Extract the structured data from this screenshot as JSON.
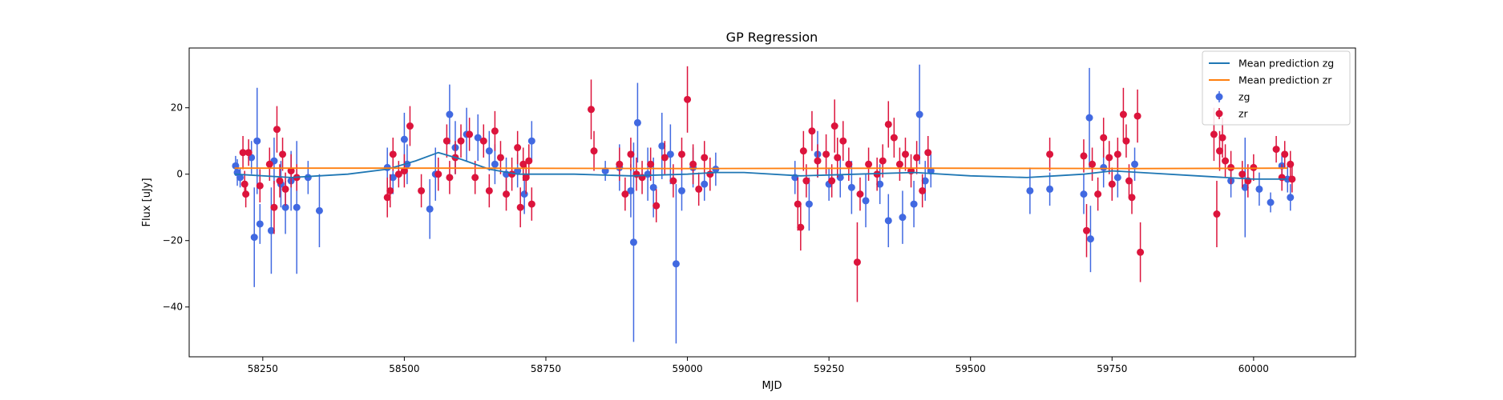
{
  "chart_data": {
    "type": "scatter",
    "title": "GP Regression",
    "xlabel": "MJD",
    "ylabel": "Flux [uJy]",
    "xlim": [
      58120,
      60180
    ],
    "ylim": [
      -55,
      38
    ],
    "xticks": [
      58250,
      58500,
      58750,
      59000,
      59250,
      59500,
      59750,
      60000
    ],
    "yticks": [
      -40,
      -20,
      0,
      20
    ],
    "grid": false,
    "legend_position": "top-right",
    "colors": {
      "zg_line": "#1f77b4",
      "zr_line": "#ff7f0e",
      "zg_points": "#4169e1",
      "zr_points": "#dc143c"
    },
    "series": [
      {
        "name": "Mean prediction zg",
        "kind": "line",
        "x": [
          58200,
          58300,
          58400,
          58470,
          58520,
          58560,
          58600,
          58650,
          58700,
          58800,
          58900,
          59000,
          59050,
          59100,
          59200,
          59300,
          59400,
          59500,
          59600,
          59650,
          59700,
          59750,
          59800,
          59900,
          59950,
          60000,
          60060
        ],
        "y": [
          0.0,
          -1.0,
          0.0,
          1.5,
          4.0,
          6.5,
          4.5,
          1.5,
          0.0,
          0.0,
          -0.5,
          0.0,
          0.5,
          0.5,
          -0.5,
          0.0,
          0.5,
          -0.5,
          -1.0,
          -0.5,
          0.0,
          1.0,
          0.5,
          -0.5,
          -1.0,
          -1.5,
          -1.5
        ]
      },
      {
        "name": "Mean prediction zr",
        "kind": "line",
        "x": [
          58200,
          58600,
          59000,
          59400,
          59800,
          60060
        ],
        "y": [
          1.8,
          1.8,
          1.7,
          1.8,
          1.7,
          1.8
        ]
      },
      {
        "name": "zg",
        "kind": "errorbar",
        "points": [
          [
            58202,
            2.5,
            3
          ],
          [
            58205,
            0.5,
            4
          ],
          [
            58210,
            -1,
            3
          ],
          [
            58230,
            5,
            5
          ],
          [
            58235,
            -19,
            15
          ],
          [
            58240,
            10,
            16
          ],
          [
            58245,
            -15,
            6
          ],
          [
            58265,
            -17,
            13
          ],
          [
            58270,
            4,
            7
          ],
          [
            58282,
            -3,
            7
          ],
          [
            58290,
            -10,
            8
          ],
          [
            58300,
            -2,
            9
          ],
          [
            58310,
            -10,
            20
          ],
          [
            58330,
            -1,
            5
          ],
          [
            58350,
            -11,
            11
          ],
          [
            58470,
            2,
            6
          ],
          [
            58480,
            -1,
            5
          ],
          [
            58500,
            10.5,
            8
          ],
          [
            58505,
            3,
            6
          ],
          [
            58545,
            -10.5,
            9
          ],
          [
            58555,
            0,
            8
          ],
          [
            58580,
            18,
            9
          ],
          [
            58590,
            8,
            8
          ],
          [
            58610,
            12,
            8
          ],
          [
            58630,
            11,
            7
          ],
          [
            58650,
            7,
            6
          ],
          [
            58660,
            3,
            6
          ],
          [
            58680,
            0,
            5
          ],
          [
            58700,
            1,
            5
          ],
          [
            58712,
            -6,
            6
          ],
          [
            58725,
            10,
            6
          ],
          [
            58855,
            1,
            3
          ],
          [
            58880,
            2,
            7
          ],
          [
            58900,
            -5,
            8
          ],
          [
            58905,
            -20.5,
            30
          ],
          [
            58912,
            15.5,
            12
          ],
          [
            58930,
            0,
            8
          ],
          [
            58940,
            -4,
            9
          ],
          [
            58955,
            8.5,
            10
          ],
          [
            58970,
            6,
            9
          ],
          [
            58980,
            -27,
            24
          ],
          [
            58990,
            -5,
            6
          ],
          [
            59010,
            2,
            6
          ],
          [
            59030,
            -3,
            5
          ],
          [
            59050,
            1.5,
            5
          ],
          [
            59190,
            -1,
            5
          ],
          [
            59215,
            -9,
            8
          ],
          [
            59230,
            6,
            7
          ],
          [
            59250,
            -3,
            5
          ],
          [
            59270,
            -1,
            6
          ],
          [
            59290,
            -4,
            8
          ],
          [
            59315,
            -8,
            8
          ],
          [
            59340,
            -3,
            6
          ],
          [
            59355,
            -14,
            8
          ],
          [
            59380,
            -13,
            8
          ],
          [
            59400,
            -9,
            7
          ],
          [
            59410,
            18,
            15
          ],
          [
            59420,
            -2,
            6
          ],
          [
            59430,
            1,
            5
          ],
          [
            59605,
            -5,
            7
          ],
          [
            59640,
            -4.5,
            5
          ],
          [
            59700,
            -6,
            6
          ],
          [
            59710,
            17,
            15
          ],
          [
            59712,
            -19.5,
            10
          ],
          [
            59735,
            2,
            6
          ],
          [
            59760,
            -1,
            6
          ],
          [
            59790,
            3,
            5
          ],
          [
            59960,
            -2,
            5
          ],
          [
            59985,
            -4,
            15
          ],
          [
            60010,
            -4.5,
            5
          ],
          [
            60030,
            -8.5,
            3
          ],
          [
            60050,
            2.5,
            4
          ],
          [
            60060,
            -1.5,
            4
          ],
          [
            60065,
            -7,
            4
          ]
        ]
      },
      {
        "name": "zr",
        "kind": "errorbar",
        "points": [
          [
            58215,
            6.5,
            5
          ],
          [
            58218,
            -3,
            4
          ],
          [
            58220,
            -6,
            4
          ],
          [
            58225,
            6.5,
            4
          ],
          [
            58245,
            -3.5,
            5
          ],
          [
            58262,
            3,
            5
          ],
          [
            58270,
            -10,
            8
          ],
          [
            58275,
            13.5,
            7
          ],
          [
            58280,
            -2,
            5
          ],
          [
            58285,
            6,
            5
          ],
          [
            58290,
            -4.5,
            5
          ],
          [
            58300,
            1,
            5
          ],
          [
            58310,
            -1,
            4
          ],
          [
            58470,
            -7,
            6
          ],
          [
            58475,
            -5,
            5
          ],
          [
            58480,
            6,
            5
          ],
          [
            58490,
            0,
            4
          ],
          [
            58500,
            1,
            5
          ],
          [
            58510,
            14.5,
            6
          ],
          [
            58530,
            -5,
            5
          ],
          [
            58560,
            0,
            5
          ],
          [
            58575,
            10,
            5
          ],
          [
            58580,
            -1,
            5
          ],
          [
            58590,
            5,
            5
          ],
          [
            58600,
            10,
            5
          ],
          [
            58615,
            12,
            5
          ],
          [
            58625,
            -1,
            5
          ],
          [
            58640,
            10,
            5
          ],
          [
            58650,
            -5,
            5
          ],
          [
            58660,
            13,
            6
          ],
          [
            58670,
            5,
            5
          ],
          [
            58680,
            -6,
            5
          ],
          [
            58690,
            0,
            5
          ],
          [
            58700,
            8,
            5
          ],
          [
            58705,
            -10,
            6
          ],
          [
            58710,
            3,
            5
          ],
          [
            58715,
            -1,
            5
          ],
          [
            58720,
            4,
            5
          ],
          [
            58725,
            -9,
            5
          ],
          [
            58830,
            19.5,
            9
          ],
          [
            58835,
            7,
            6
          ],
          [
            58880,
            3,
            5
          ],
          [
            58890,
            -6,
            5
          ],
          [
            58900,
            6,
            5
          ],
          [
            58910,
            0,
            5
          ],
          [
            58920,
            -1,
            5
          ],
          [
            58935,
            3,
            5
          ],
          [
            58945,
            -9.5,
            5
          ],
          [
            58960,
            5,
            5
          ],
          [
            58975,
            -2,
            5
          ],
          [
            58990,
            6,
            5
          ],
          [
            59000,
            22.5,
            10
          ],
          [
            59010,
            3,
            6
          ],
          [
            59020,
            -4.5,
            5
          ],
          [
            59030,
            5,
            5
          ],
          [
            59040,
            0,
            5
          ],
          [
            59195,
            -9,
            8
          ],
          [
            59200,
            -16,
            7
          ],
          [
            59205,
            7,
            6
          ],
          [
            59210,
            -2,
            5
          ],
          [
            59220,
            13,
            6
          ],
          [
            59230,
            4,
            5
          ],
          [
            59245,
            6,
            6
          ],
          [
            59255,
            -2,
            5
          ],
          [
            59260,
            14.5,
            8
          ],
          [
            59265,
            5,
            6
          ],
          [
            59275,
            10,
            6
          ],
          [
            59285,
            3,
            5
          ],
          [
            59300,
            -26.5,
            12
          ],
          [
            59305,
            -6,
            5
          ],
          [
            59320,
            3,
            5
          ],
          [
            59335,
            0,
            5
          ],
          [
            59345,
            4,
            5
          ],
          [
            59355,
            15,
            7
          ],
          [
            59365,
            11,
            6
          ],
          [
            59375,
            3,
            5
          ],
          [
            59385,
            6,
            5
          ],
          [
            59395,
            1,
            5
          ],
          [
            59405,
            5,
            5
          ],
          [
            59415,
            -5,
            5
          ],
          [
            59425,
            6.5,
            5
          ],
          [
            59640,
            6,
            5
          ],
          [
            59700,
            5.5,
            5
          ],
          [
            59705,
            -17,
            8
          ],
          [
            59715,
            3,
            5
          ],
          [
            59725,
            -6,
            5
          ],
          [
            59735,
            11,
            6
          ],
          [
            59745,
            5,
            5
          ],
          [
            59750,
            -3,
            5
          ],
          [
            59760,
            6,
            5
          ],
          [
            59770,
            18,
            8
          ],
          [
            59775,
            10,
            5
          ],
          [
            59780,
            -2,
            5
          ],
          [
            59785,
            -7,
            5
          ],
          [
            59795,
            17.5,
            8
          ],
          [
            59800,
            -23.5,
            9
          ],
          [
            59930,
            12,
            8
          ],
          [
            59935,
            -12,
            10
          ],
          [
            59940,
            7,
            6
          ],
          [
            59945,
            11,
            6
          ],
          [
            59950,
            4,
            5
          ],
          [
            59960,
            2,
            5
          ],
          [
            59980,
            0,
            4
          ],
          [
            59990,
            -2,
            5
          ],
          [
            60000,
            2,
            4
          ],
          [
            60040,
            7.5,
            4
          ],
          [
            60050,
            -1,
            4
          ],
          [
            60055,
            6,
            4
          ],
          [
            60065,
            3,
            4
          ],
          [
            60068,
            -1.5,
            4
          ]
        ]
      }
    ]
  }
}
